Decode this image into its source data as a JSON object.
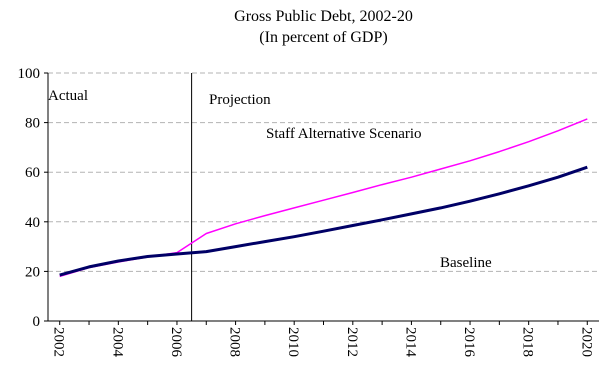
{
  "chart_data": {
    "type": "line",
    "title": "Gross Public Debt, 2002-20",
    "subtitle": "(In percent of GDP)",
    "xlabel": "",
    "ylabel": "",
    "ylim": [
      0,
      100
    ],
    "xlim": [
      2001.6,
      2020.4
    ],
    "yticks": [
      0,
      20,
      40,
      60,
      80,
      100
    ],
    "xticks": [
      "2002",
      "2004",
      "2006",
      "2008",
      "2010",
      "2012",
      "2014",
      "2016",
      "2018",
      "2020"
    ],
    "grid": "horizontal dashed",
    "x": [
      2002,
      2003,
      2004,
      2005,
      2006,
      2007,
      2008,
      2009,
      2010,
      2011,
      2012,
      2013,
      2014,
      2015,
      2016,
      2017,
      2018,
      2019,
      2020
    ],
    "series": [
      {
        "name": "Staff Alternative Scenario",
        "color": "#ff00ff",
        "values": [
          18,
          21.5,
          23.8,
          25.8,
          27.6,
          35.3,
          39.2,
          42.5,
          45.6,
          48.7,
          51.8,
          55.0,
          58.0,
          61.3,
          64.6,
          68.3,
          72.3,
          76.7,
          81.5
        ]
      },
      {
        "name": "Baseline",
        "color": "#000066",
        "values": [
          18.5,
          21.8,
          24.2,
          26.0,
          27.0,
          28.0,
          30.0,
          32.0,
          34.0,
          36.2,
          38.5,
          40.8,
          43.2,
          45.6,
          48.3,
          51.3,
          54.5,
          58.0,
          62.0
        ]
      }
    ],
    "divider_year": 2006.5,
    "annotations": {
      "actual": "Actual",
      "projection": "Projection",
      "alternative": "Staff Alternative Scenario",
      "baseline": "Baseline"
    }
  }
}
